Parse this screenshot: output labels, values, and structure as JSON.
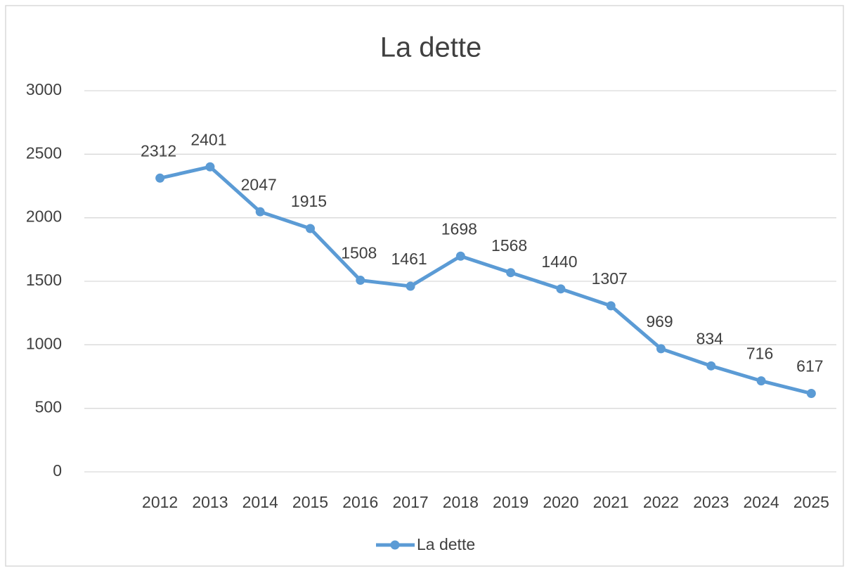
{
  "chart_data": {
    "type": "line",
    "title": "La dette",
    "categories": [
      "2012",
      "2013",
      "2014",
      "2015",
      "2016",
      "2017",
      "2018",
      "2019",
      "2020",
      "2021",
      "2022",
      "2023",
      "2024",
      "2025"
    ],
    "series": [
      {
        "name": "La dette",
        "color": "#5b9bd5",
        "values": [
          2312,
          2401,
          2047,
          1915,
          1508,
          1461,
          1698,
          1568,
          1440,
          1307,
          969,
          834,
          716,
          617
        ]
      }
    ],
    "ylim": [
      0,
      3000
    ],
    "yticks": [
      0,
      500,
      1000,
      1500,
      2000,
      2500,
      3000
    ],
    "grid": true,
    "data_labels": true,
    "legend": "bottom"
  }
}
